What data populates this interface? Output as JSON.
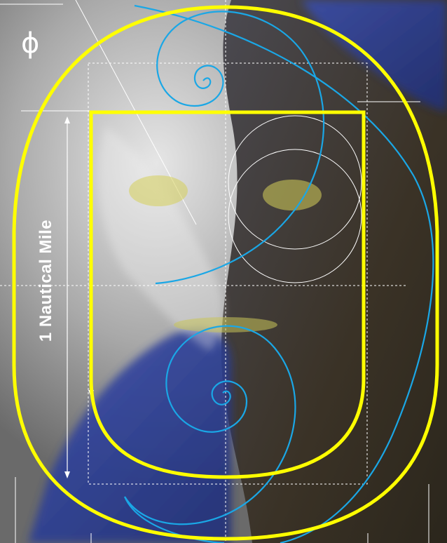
{
  "image": {
    "subject": "aerial terrain photograph with golden-ratio overlay",
    "colors": {
      "overlay_yellow": "#ffff00",
      "spiral_cyan": "#1aa7e6",
      "guide_white": "#ffffff",
      "terrain_light": "#c9c9c9",
      "terrain_dark": "#3b3528",
      "water_blue": "#2b3f9a"
    }
  },
  "labels": {
    "phi_symbol": "ϕ",
    "scale_bar": "1 Nautical Mile"
  }
}
